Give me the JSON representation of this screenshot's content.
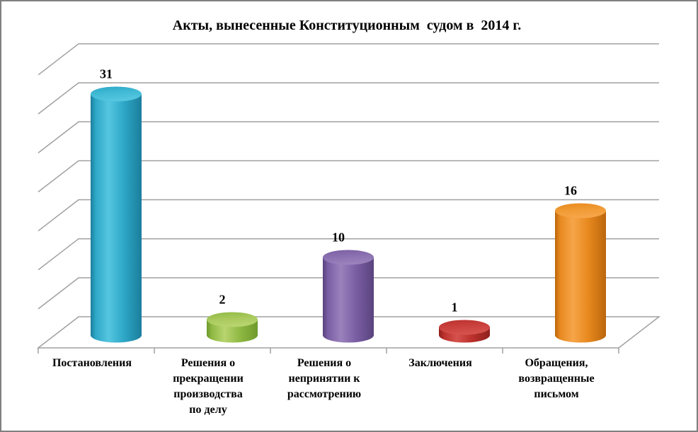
{
  "window": {
    "background": "#FFFFFF",
    "border_color": "#808080"
  },
  "chart_data": {
    "type": "bar",
    "subtype": "3d-cylinder",
    "title": "Акты, вынесенные Конституционным  судом в  2014 г.",
    "categories": [
      "Постановления",
      "Решения о прекращении производства по делу",
      "Решения о непринятии к рассмотрению",
      "Заключения",
      "Обращения, возвращенные письмом"
    ],
    "category_lines": [
      [
        "Постановления"
      ],
      [
        "Решения о",
        "прекращении",
        "производства",
        "по делу"
      ],
      [
        "Решения о",
        "непринятии к",
        "рассмотрению"
      ],
      [
        "Заключения"
      ],
      [
        "Обращения,",
        "возвращенные",
        "письмом"
      ]
    ],
    "values": [
      31,
      2,
      10,
      1,
      16
    ],
    "data_labels": [
      "31",
      "2",
      "10",
      "1",
      "16"
    ],
    "ylim": [
      0,
      35
    ],
    "y_major_unit": 5,
    "value_axis_tick_labels": "hidden",
    "legend": "none",
    "gridlines": true,
    "gridline_color": "#A0A0A0",
    "axis_color": "#A0A0A0",
    "text_color": "#000000",
    "bar_colors": [
      {
        "name": "teal",
        "light": "#55C6E0",
        "base": "#2EA7C7",
        "dark": "#1B7E9C",
        "top": "#41BAD5"
      },
      {
        "name": "green",
        "light": "#B8D46F",
        "base": "#8FB943",
        "dark": "#6E9A2C",
        "top": "#A8C95C"
      },
      {
        "name": "purple",
        "light": "#9A82BC",
        "base": "#7A5EA4",
        "dark": "#59437D",
        "top": "#8A70B0"
      },
      {
        "name": "red",
        "light": "#D5524C",
        "base": "#BB302C",
        "dark": "#8E201E",
        "top": "#C9403C"
      },
      {
        "name": "orange",
        "light": "#F6A549",
        "base": "#E8891F",
        "dark": "#BB660C",
        "top": "#F09A33"
      }
    ]
  }
}
